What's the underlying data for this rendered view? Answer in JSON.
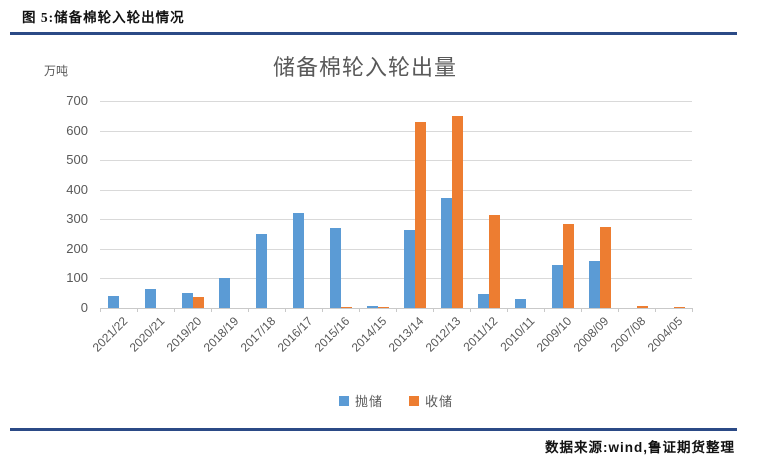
{
  "header": {
    "figure_label": "图 5:储备棉轮入轮出情况"
  },
  "footer": {
    "source": "数据来源:wind,鲁证期货整理"
  },
  "colors": {
    "accent_rule": "#2B4A86",
    "series_release": "#5B9BD5",
    "series_storage": "#ED7D31",
    "gridline": "#D9D9D9",
    "axis_text": "#595959"
  },
  "chart_data": {
    "type": "bar",
    "title": "储备棉轮入轮出量",
    "unit_label": "万吨",
    "xlabel": "",
    "ylabel": "万吨",
    "ylim": [
      0,
      700
    ],
    "ytick_interval": 100,
    "yticks": [
      0,
      100,
      200,
      300,
      400,
      500,
      600,
      700
    ],
    "grid": true,
    "legend_position": "bottom",
    "categories": [
      "2021/22",
      "2020/21",
      "2019/20",
      "2018/19",
      "2017/18",
      "2016/17",
      "2015/16",
      "2014/15",
      "2013/14",
      "2012/13",
      "2011/12",
      "2010/11",
      "2009/10",
      "2008/09",
      "2007/08",
      "2004/05"
    ],
    "series": [
      {
        "name": "抛储",
        "key": "release",
        "color": "#5B9BD5",
        "values": [
          40,
          63,
          50,
          100,
          250,
          322,
          270,
          8,
          263,
          372,
          49,
          30,
          145,
          158,
          0,
          0
        ]
      },
      {
        "name": "收储",
        "key": "storage",
        "color": "#ED7D31",
        "values": [
          0,
          0,
          37,
          0,
          0,
          0,
          2,
          3,
          629,
          650,
          313,
          0,
          285,
          273,
          8,
          3
        ]
      }
    ]
  }
}
